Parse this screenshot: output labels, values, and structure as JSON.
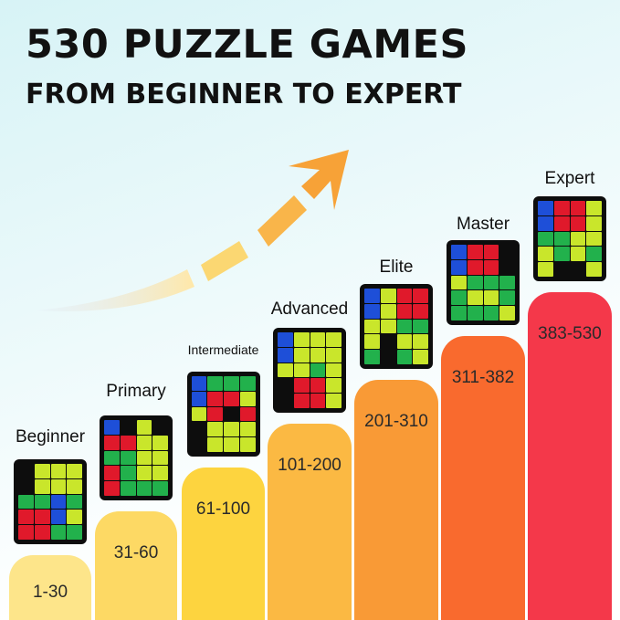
{
  "header": {
    "title": "530 PUZZLE GAMES",
    "subtitle": "FROM BEGINNER TO EXPERT"
  },
  "colors": {
    "arrow": "#f7a237",
    "text": "#111111",
    "tile_k": "#0d0d0d",
    "tile_y": "#c9e62b",
    "tile_g": "#22b14c",
    "tile_r": "#e0192b",
    "tile_b": "#1e4fd8"
  },
  "levels": [
    {
      "name": "Beginner",
      "range": "1-30",
      "color": "#fde58a",
      "grid": [
        "kyyy",
        "kyyy",
        "ggbg",
        "rrby",
        "rrgg"
      ]
    },
    {
      "name": "Primary",
      "range": "31-60",
      "color": "#fdd964",
      "grid": [
        "bkyk",
        "rryy",
        "ggyy",
        "rgyy",
        "rggg"
      ]
    },
    {
      "name": "Intermediate",
      "range": "61-100",
      "color": "#fdd43f",
      "grid": [
        "bggg",
        "brry",
        "yrkr",
        "kyyy",
        "kyyy"
      ]
    },
    {
      "name": "Advanced",
      "range": "101-200",
      "color": "#fbb943",
      "grid": [
        "byyy",
        "byyy",
        "yygy",
        "krry",
        "krry"
      ]
    },
    {
      "name": "Elite",
      "range": "201-310",
      "color": "#f99a36",
      "grid": [
        "byrr",
        "byrr",
        "yygg",
        "ykyy",
        "gkgy"
      ]
    },
    {
      "name": "Master",
      "range": "311-382",
      "color": "#f96a2e",
      "grid": [
        "brrk",
        "brrk",
        "yggg",
        "gyyg",
        "gggy"
      ]
    },
    {
      "name": "Expert",
      "range": "383-530",
      "color": "#f4384a",
      "grid": [
        "brry",
        "brry",
        "ggyy",
        "ygyg",
        "ykky"
      ]
    }
  ]
}
